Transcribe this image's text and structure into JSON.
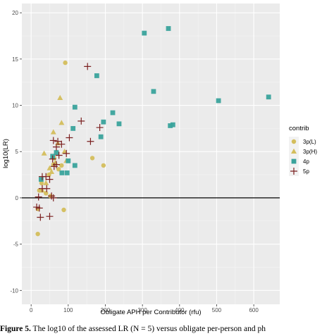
{
  "chart_data": {
    "type": "scatter",
    "xlabel": "Obligate APH per Contributor (rfu)",
    "ylabel": "log10(LR)",
    "xlim": [
      -25,
      670
    ],
    "ylim": [
      -11.5,
      21
    ],
    "x_ticks": [
      0,
      100,
      200,
      300,
      400,
      500,
      600
    ],
    "y_ticks": [
      -10,
      -5,
      0,
      5,
      10,
      15,
      20
    ],
    "hline": 0,
    "grid": true,
    "legend_title": "contrib",
    "legend_position": "right",
    "series": [
      {
        "name": "3p(L)",
        "shape": "circle",
        "color": "#D4BE5C",
        "points": [
          [
            92,
            14.6
          ],
          [
            165,
            4.3
          ],
          [
            195,
            3.5
          ],
          [
            62,
            4.3
          ],
          [
            82,
            3.5
          ],
          [
            60,
            3.6
          ],
          [
            48,
            2.5
          ],
          [
            28,
            1.6
          ],
          [
            40,
            0.5
          ],
          [
            18,
            -1.2
          ],
          [
            88,
            -1.3
          ],
          [
            18,
            -3.9
          ],
          [
            52,
            0.2
          ],
          [
            22,
            0.8
          ],
          [
            74,
            3.1
          ]
        ]
      },
      {
        "name": "3p(H)",
        "shape": "triangle",
        "color": "#D4BE5C",
        "points": [
          [
            78,
            10.8
          ],
          [
            82,
            8.1
          ],
          [
            60,
            7.1
          ],
          [
            35,
            4.8
          ],
          [
            90,
            5.0
          ],
          [
            95,
            4.0
          ],
          [
            72,
            5.9
          ],
          [
            50,
            3.2
          ],
          [
            55,
            2.8
          ],
          [
            40,
            1.6
          ],
          [
            30,
            0.8
          ],
          [
            65,
            3.8
          ]
        ]
      },
      {
        "name": "4p",
        "shape": "square",
        "color": "#3AA39C",
        "points": [
          [
            370,
            18.3
          ],
          [
            305,
            17.8
          ],
          [
            177,
            13.2
          ],
          [
            330,
            11.5
          ],
          [
            640,
            10.9
          ],
          [
            505,
            10.5
          ],
          [
            118,
            9.8
          ],
          [
            220,
            9.2
          ],
          [
            195,
            8.2
          ],
          [
            237,
            8.0
          ],
          [
            375,
            7.8
          ],
          [
            382,
            7.9
          ],
          [
            113,
            7.5
          ],
          [
            188,
            6.6
          ],
          [
            68,
            4.9
          ],
          [
            58,
            4.5
          ],
          [
            100,
            4.0
          ],
          [
            118,
            3.5
          ],
          [
            83,
            2.7
          ],
          [
            97,
            2.7
          ],
          [
            27,
            2.0
          ]
        ]
      },
      {
        "name": "5p",
        "shape": "plus",
        "color": "#7A1F1F",
        "points": [
          [
            152,
            14.2
          ],
          [
            135,
            8.3
          ],
          [
            185,
            7.6
          ],
          [
            103,
            6.5
          ],
          [
            60,
            6.2
          ],
          [
            72,
            6.1
          ],
          [
            82,
            5.8
          ],
          [
            68,
            5.5
          ],
          [
            160,
            6.1
          ],
          [
            95,
            4.8
          ],
          [
            75,
            4.6
          ],
          [
            58,
            4.2
          ],
          [
            62,
            3.4
          ],
          [
            30,
            2.3
          ],
          [
            40,
            2.3
          ],
          [
            50,
            2.0
          ],
          [
            30,
            1.0
          ],
          [
            42,
            1.0
          ],
          [
            55,
            0.2
          ],
          [
            20,
            0.1
          ],
          [
            60,
            0.0
          ],
          [
            15,
            -1.0
          ],
          [
            22,
            -1.1
          ],
          [
            50,
            -2.0
          ],
          [
            25,
            -2.1
          ],
          [
            68,
            3.6
          ]
        ]
      }
    ]
  },
  "caption": {
    "label": "Figure 5.",
    "text": " The log10 of the assessed LR (N = 5) versus obligate per-person and ph"
  }
}
